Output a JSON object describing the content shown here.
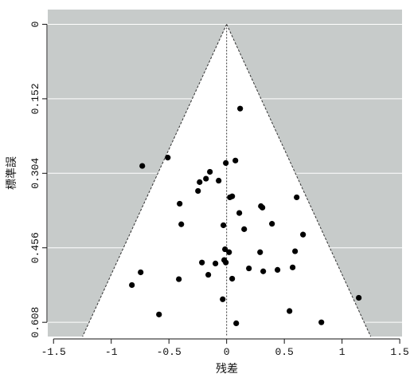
{
  "chart_data": {
    "type": "scatter",
    "subtype": "funnel",
    "title": "",
    "xlabel": "残差",
    "ylabel": "標準誤",
    "xlim": [
      -1.55,
      1.52
    ],
    "ylim": [
      -0.03,
      0.637
    ],
    "y_reversed": true,
    "grid": true,
    "xticks": [
      -1.5,
      -1,
      -0.5,
      0,
      0.5,
      1,
      1.5
    ],
    "xtick_labels": [
      "-1.5",
      "-1",
      "-0.5",
      "0",
      "0.5",
      "1",
      "1.5"
    ],
    "yticks": [
      0,
      0.152,
      0.304,
      0.456,
      0.608
    ],
    "ytick_labels": [
      "0",
      "0.152",
      "0.304",
      "0.456",
      "0.608"
    ],
    "funnel": {
      "center": 0,
      "z": 1.96
    },
    "colors": {
      "background": "#c7cbca",
      "funnel": "#ffffff",
      "grid": "#ffffff",
      "points": "#000000",
      "lines": "#333333"
    },
    "points": [
      {
        "x": 0.117,
        "y": 0.172
      },
      {
        "x": -0.51,
        "y": 0.272
      },
      {
        "x": -0.731,
        "y": 0.289
      },
      {
        "x": -0.007,
        "y": 0.283
      },
      {
        "x": 0.076,
        "y": 0.278
      },
      {
        "x": -0.145,
        "y": 0.301
      },
      {
        "x": -0.179,
        "y": 0.315
      },
      {
        "x": -0.234,
        "y": 0.322
      },
      {
        "x": -0.069,
        "y": 0.319
      },
      {
        "x": -0.248,
        "y": 0.34
      },
      {
        "x": 0.028,
        "y": 0.353
      },
      {
        "x": 0.048,
        "y": 0.351
      },
      {
        "x": -0.407,
        "y": 0.366
      },
      {
        "x": 0.31,
        "y": 0.374
      },
      {
        "x": 0.297,
        "y": 0.371
      },
      {
        "x": 0.607,
        "y": 0.353
      },
      {
        "x": 0.11,
        "y": 0.385
      },
      {
        "x": -0.393,
        "y": 0.408
      },
      {
        "x": -0.028,
        "y": 0.41
      },
      {
        "x": 0.152,
        "y": 0.418
      },
      {
        "x": 0.393,
        "y": 0.407
      },
      {
        "x": 0.662,
        "y": 0.429
      },
      {
        "x": -0.014,
        "y": 0.459
      },
      {
        "x": 0.021,
        "y": 0.465
      },
      {
        "x": 0.29,
        "y": 0.465
      },
      {
        "x": 0.593,
        "y": 0.463
      },
      {
        "x": -0.021,
        "y": 0.481
      },
      {
        "x": -0.007,
        "y": 0.486
      },
      {
        "x": -0.214,
        "y": 0.486
      },
      {
        "x": -0.097,
        "y": 0.488
      },
      {
        "x": 0.193,
        "y": 0.498
      },
      {
        "x": 0.317,
        "y": 0.504
      },
      {
        "x": 0.441,
        "y": 0.501
      },
      {
        "x": 0.572,
        "y": 0.496
      },
      {
        "x": -0.159,
        "y": 0.511
      },
      {
        "x": 0.048,
        "y": 0.519
      },
      {
        "x": -0.414,
        "y": 0.52
      },
      {
        "x": -0.745,
        "y": 0.506
      },
      {
        "x": -0.821,
        "y": 0.532
      },
      {
        "x": -0.034,
        "y": 0.561
      },
      {
        "x": 1.145,
        "y": 0.558
      },
      {
        "x": -0.586,
        "y": 0.592
      },
      {
        "x": 0.545,
        "y": 0.585
      },
      {
        "x": 0.083,
        "y": 0.61
      },
      {
        "x": 0.821,
        "y": 0.608
      }
    ]
  }
}
